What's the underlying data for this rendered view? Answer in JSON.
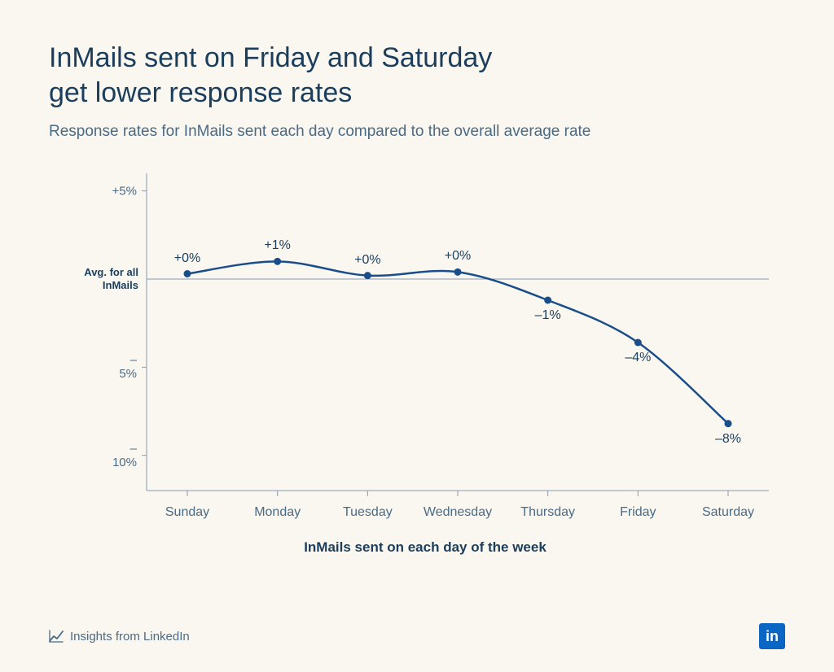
{
  "title_line1": "InMails sent on Friday and Saturday",
  "title_line2": "get lower response rates",
  "subtitle": "Response rates for InMails sent each day compared to the overall average rate",
  "chart": {
    "type": "line",
    "categories": [
      "Sunday",
      "Monday",
      "Tuesday",
      "Wednesday",
      "Thursday",
      "Friday",
      "Saturday"
    ],
    "values": [
      0.3,
      1,
      0.2,
      0.4,
      -1.2,
      -3.6,
      -8.2
    ],
    "value_labels": [
      "+0%",
      "+1%",
      "+0%",
      "+0%",
      "–1%",
      "–4%",
      "–8%"
    ],
    "label_positions": [
      "above",
      "above",
      "above",
      "above",
      "below",
      "below",
      "below"
    ],
    "ylim": [
      -12,
      6
    ],
    "yticks": [
      5,
      -5,
      -10
    ],
    "ytick_labels": [
      "+5%",
      "–5%",
      "–10%"
    ],
    "zero_line_label": "Avg. for all InMails",
    "x_axis_title": "InMails sent on each day of the week",
    "line_color": "#1a4e8a",
    "marker_color": "#1a4e8a",
    "marker_radius": 4.5,
    "line_width": 2.5,
    "axis_color": "#8a9bb0",
    "zero_line_color": "#8a9bb0",
    "background_color": "#faf6f0",
    "title_color": "#1a3e5c",
    "subtitle_color": "#4a6b85",
    "tick_label_color": "#4a6b85",
    "title_fontsize": 34,
    "subtitle_fontsize": 19,
    "tick_fontsize": 15,
    "data_label_fontsize": 16,
    "x_title_fontsize": 17
  },
  "footer": {
    "insights_label": "Insights from LinkedIn",
    "logo_text": "in"
  }
}
